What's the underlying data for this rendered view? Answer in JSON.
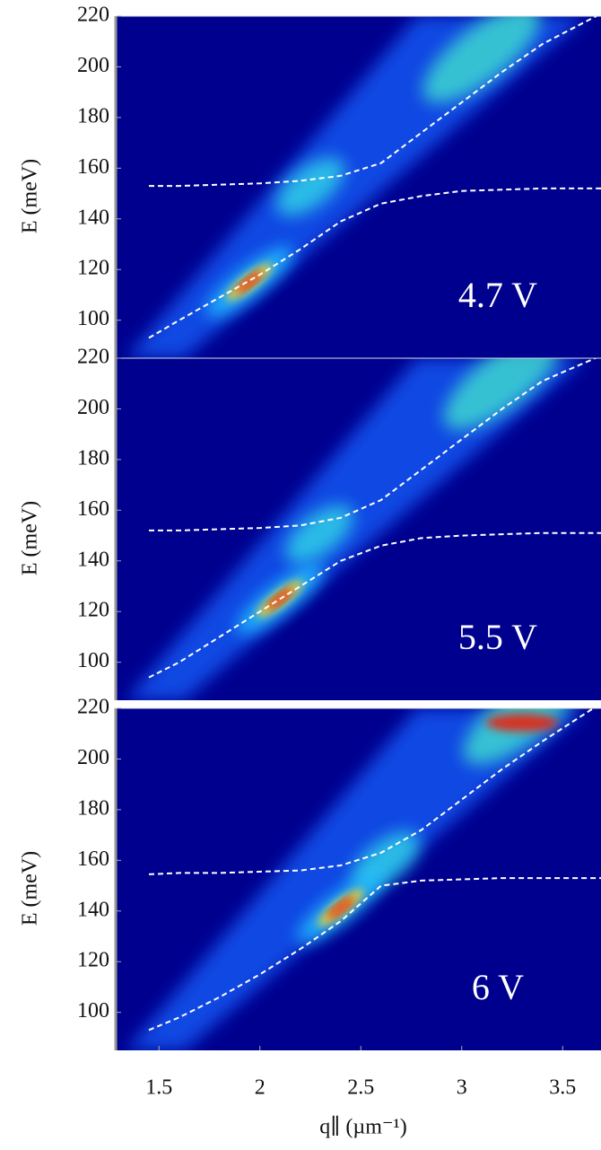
{
  "chart_data": [
    {
      "type": "line",
      "annotation": "4.7 V",
      "ylabel": "E (meV)",
      "xlim": [
        1.29,
        3.69
      ],
      "ylim": [
        85,
        220
      ],
      "yticks": [
        100,
        120,
        140,
        160,
        180,
        200,
        220
      ],
      "x": [
        1.45,
        1.6,
        1.8,
        2.0,
        2.2,
        2.4,
        2.6,
        2.8,
        3.0,
        3.2,
        3.4,
        3.69
      ],
      "series": [
        {
          "color": "#ffffff",
          "values": [
            153,
            153,
            153.5,
            154,
            155,
            157,
            162,
            174,
            186,
            198,
            209,
            221
          ]
        },
        {
          "color": "#ffffff",
          "values": [
            93,
            100,
            109,
            118,
            128,
            139,
            146,
            149,
            151,
            151.5,
            152,
            152
          ]
        }
      ]
    },
    {
      "type": "line",
      "annotation": "5.5 V",
      "ylabel": "E (meV)",
      "xlim": [
        1.29,
        3.69
      ],
      "ylim": [
        85,
        220
      ],
      "yticks": [
        100,
        120,
        140,
        160,
        180,
        200,
        220
      ],
      "x": [
        1.45,
        1.6,
        1.8,
        2.0,
        2.2,
        2.4,
        2.6,
        2.8,
        3.0,
        3.2,
        3.4,
        3.69
      ],
      "series": [
        {
          "color": "#ffffff",
          "values": [
            152,
            152,
            152.5,
            153,
            154,
            157,
            164,
            176,
            188,
            200,
            211,
            221
          ]
        },
        {
          "color": "#ffffff",
          "values": [
            94,
            100,
            110,
            120,
            130,
            140,
            146,
            149,
            150,
            150.5,
            151,
            151
          ]
        }
      ]
    },
    {
      "type": "line",
      "annotation": "6 V",
      "ylabel": "E (meV)",
      "xlabel": "q∥ (µm⁻¹)",
      "xlim": [
        1.29,
        3.69
      ],
      "ylim": [
        85,
        220
      ],
      "yticks": [
        100,
        120,
        140,
        160,
        180,
        200,
        220
      ],
      "xticks": [
        1.5,
        2,
        2.5,
        3,
        3.5
      ],
      "x": [
        1.45,
        1.6,
        1.8,
        2.0,
        2.2,
        2.4,
        2.6,
        2.8,
        3.0,
        3.2,
        3.4,
        3.69
      ],
      "series": [
        {
          "color": "#ffffff",
          "values": [
            154.5,
            155,
            155,
            155.5,
            156,
            158,
            163,
            172,
            184,
            196,
            207,
            222
          ]
        },
        {
          "color": "#ffffff",
          "values": [
            93,
            98,
            106,
            115,
            125,
            136,
            150,
            152,
            152.5,
            153,
            153,
            153
          ]
        }
      ]
    }
  ]
}
